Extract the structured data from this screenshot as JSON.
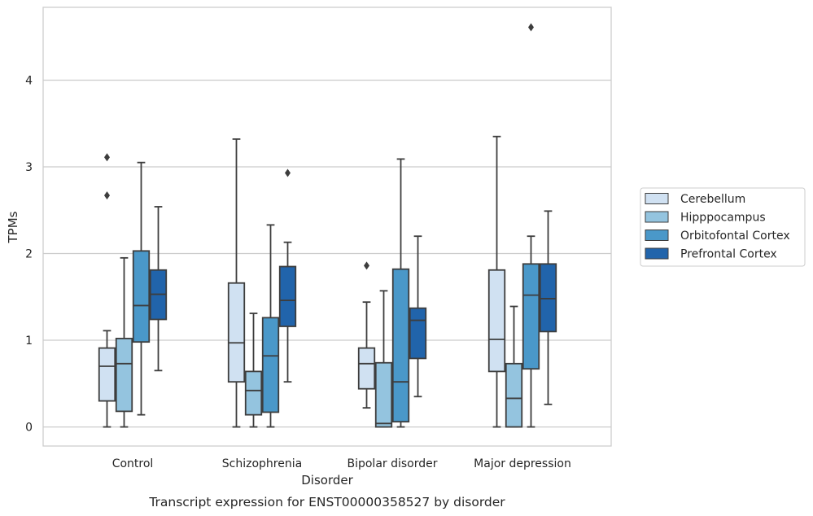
{
  "chart_data": {
    "type": "boxplot",
    "title": "",
    "caption": "Transcript expression for ENST00000358527 by disorder",
    "xlabel": "Disorder",
    "ylabel": "TPMs",
    "ylim": [
      -0.22,
      4.84
    ],
    "yticks": [
      0,
      1,
      2,
      3,
      4
    ],
    "grid": "horizontal",
    "legend_position": "right",
    "categories": [
      "Control",
      "Schizophrenia",
      "Bipolar disorder",
      "Major depression"
    ],
    "series": [
      {
        "name": "Cerebellum",
        "color": "#d0e1f2",
        "boxes": [
          {
            "whisker_low": 0.0,
            "q1": 0.3,
            "median": 0.7,
            "q3": 0.91,
            "whisker_high": 1.11,
            "outliers": [
              2.67,
              3.11
            ]
          },
          {
            "whisker_low": 0.0,
            "q1": 0.52,
            "median": 0.97,
            "q3": 1.66,
            "whisker_high": 3.32,
            "outliers": []
          },
          {
            "whisker_low": 0.22,
            "q1": 0.44,
            "median": 0.73,
            "q3": 0.91,
            "whisker_high": 1.44,
            "outliers": [
              1.86
            ]
          },
          {
            "whisker_low": 0.0,
            "q1": 0.64,
            "median": 1.01,
            "q3": 1.81,
            "whisker_high": 3.35,
            "outliers": []
          }
        ]
      },
      {
        "name": "Hipppocampus",
        "color": "#94c4df",
        "boxes": [
          {
            "whisker_low": 0.0,
            "q1": 0.18,
            "median": 0.73,
            "q3": 1.02,
            "whisker_high": 1.95,
            "outliers": []
          },
          {
            "whisker_low": 0.0,
            "q1": 0.14,
            "median": 0.42,
            "q3": 0.64,
            "whisker_high": 1.31,
            "outliers": []
          },
          {
            "whisker_low": 0.0,
            "q1": 0.0,
            "median": 0.04,
            "q3": 0.74,
            "whisker_high": 1.57,
            "outliers": []
          },
          {
            "whisker_low": 0.0,
            "q1": 0.0,
            "median": 0.33,
            "q3": 0.73,
            "whisker_high": 1.39,
            "outliers": []
          }
        ]
      },
      {
        "name": "Orbitofontal Cortex",
        "color": "#4a98c9",
        "boxes": [
          {
            "whisker_low": 0.14,
            "q1": 0.98,
            "median": 1.4,
            "q3": 2.03,
            "whisker_high": 3.05,
            "outliers": []
          },
          {
            "whisker_low": 0.0,
            "q1": 0.17,
            "median": 0.82,
            "q3": 1.26,
            "whisker_high": 2.33,
            "outliers": []
          },
          {
            "whisker_low": 0.0,
            "q1": 0.06,
            "median": 0.52,
            "q3": 1.82,
            "whisker_high": 3.09,
            "outliers": []
          },
          {
            "whisker_low": 0.0,
            "q1": 0.67,
            "median": 1.52,
            "q3": 1.88,
            "whisker_high": 2.2,
            "outliers": [
              4.61
            ]
          }
        ]
      },
      {
        "name": "Prefrontal Cortex",
        "color": "#2164ab",
        "boxes": [
          {
            "whisker_low": 0.65,
            "q1": 1.24,
            "median": 1.53,
            "q3": 1.81,
            "whisker_high": 2.54,
            "outliers": []
          },
          {
            "whisker_low": 0.52,
            "q1": 1.16,
            "median": 1.46,
            "q3": 1.85,
            "whisker_high": 2.13,
            "outliers": [
              2.93
            ]
          },
          {
            "whisker_low": 0.35,
            "q1": 0.79,
            "median": 1.23,
            "q3": 1.37,
            "whisker_high": 2.2,
            "outliers": []
          },
          {
            "whisker_low": 0.26,
            "q1": 1.1,
            "median": 1.48,
            "q3": 1.88,
            "whisker_high": 2.49,
            "outliers": []
          }
        ]
      }
    ]
  }
}
